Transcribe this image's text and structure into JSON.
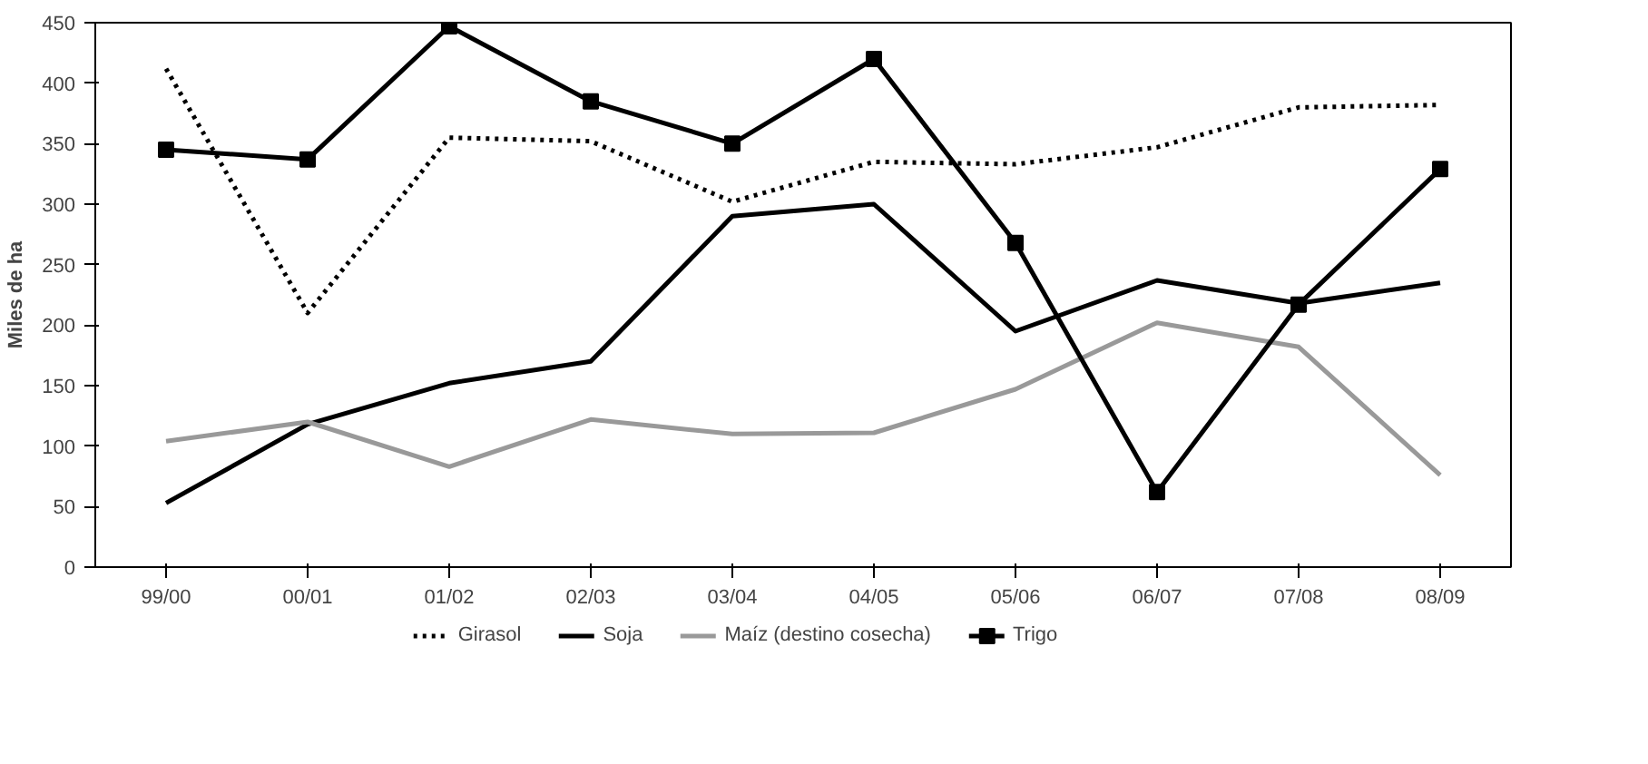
{
  "chart_data": {
    "type": "line",
    "ylabel": "Miles de ha",
    "categories": [
      "99/00",
      "00/01",
      "01/02",
      "02/03",
      "03/04",
      "04/05",
      "05/06",
      "06/07",
      "07/08",
      "08/09"
    ],
    "ylim": [
      0,
      450
    ],
    "yticks": [
      0,
      50,
      100,
      150,
      200,
      250,
      300,
      350,
      400,
      450
    ],
    "grid": false,
    "legend": "bottom",
    "marker": "none",
    "series": [
      {
        "name": "Girasol",
        "color": "#000000",
        "line_style": "dotted",
        "values": [
          412,
          210,
          355,
          352,
          302,
          335,
          333,
          347,
          380,
          382
        ]
      },
      {
        "name": "Soja",
        "color": "#000000",
        "line_style": "solid",
        "values": [
          53,
          118,
          152,
          170,
          290,
          300,
          195,
          237,
          218,
          235
        ]
      },
      {
        "name": "Maíz (destino cosecha)",
        "color": "#999999",
        "line_style": "solid",
        "values": [
          104,
          120,
          83,
          122,
          110,
          111,
          147,
          202,
          182,
          76
        ]
      },
      {
        "name": "Trigo",
        "color": "#000000",
        "line_style": "solid",
        "marker": "square",
        "values": [
          345,
          337,
          447,
          385,
          350,
          420,
          268,
          62,
          217,
          329
        ]
      }
    ]
  }
}
